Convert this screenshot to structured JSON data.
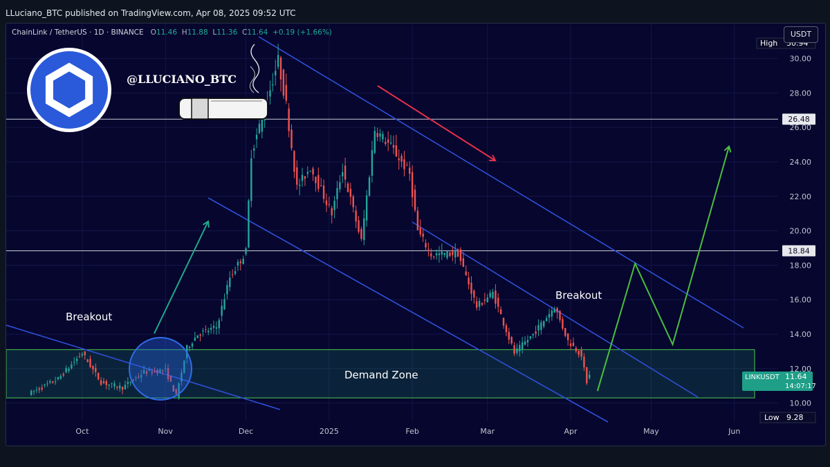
{
  "header": {
    "published_line": "LLuciano_BTC published on TradingView.com, Apr 08, 2025 09:52 UTC"
  },
  "legend": {
    "symbol": "ChainLink / TetherUS · 1D · BINANCE",
    "open_k": "O",
    "open": "11.46",
    "high_k": "H",
    "high": "11.88",
    "low_k": "L",
    "low": "11.36",
    "close_k": "C",
    "close": "11.64",
    "change": "+0.19 (+1.66%)"
  },
  "currency_button": "USDT",
  "author_tag": "@LLUCIANO_BTC",
  "price_scale": {
    "high_label": "High",
    "high_value": "30.94",
    "low_label": "Low",
    "low_value": "9.28",
    "ticker": "LINKUSDT",
    "last_price": "11.64",
    "countdown": "14:07:17",
    "level_upper": "26.48",
    "level_lower": "18.84"
  },
  "annotations": {
    "breakout_left": "Breakout",
    "breakout_right": "Breakout",
    "demand_zone": "Demand Zone"
  },
  "colors": {
    "background": "#06062e",
    "bull": "#26a69a",
    "bear": "#ef5350",
    "channel": "#2f4fd8",
    "demand_zone": "#3fae4a",
    "projection": "#4bbf3f",
    "red_arrow": "#e8304c",
    "teal_arrow": "#22a88c",
    "logo_blue": "#2a5ada"
  },
  "icons": {
    "logo": "chainlink-logo-icon",
    "cigar": "cigar-icon"
  },
  "chart_data": {
    "type": "candlestick",
    "symbol": "LINKUSDT",
    "interval": "1D",
    "x_tick_labels": [
      "Oct",
      "Nov",
      "Dec",
      "2025",
      "Feb",
      "Mar",
      "Apr",
      "May",
      "Jun"
    ],
    "y_tick_labels": [
      "10.00",
      "12.00",
      "14.00",
      "16.00",
      "18.00",
      "20.00",
      "22.00",
      "24.00",
      "26.00",
      "28.00",
      "30.00"
    ],
    "ylim": [
      9.2,
      31.0
    ],
    "horizontal_levels": [
      26.48,
      18.84
    ],
    "demand_zone": [
      10.3,
      13.1
    ],
    "grid": true,
    "price_path": [
      {
        "date": "2024-09-12",
        "close": 10.6
      },
      {
        "date": "2024-09-22",
        "close": 11.4
      },
      {
        "date": "2024-10-01",
        "close": 12.9
      },
      {
        "date": "2024-10-08",
        "close": 11.2
      },
      {
        "date": "2024-10-16",
        "close": 10.9
      },
      {
        "date": "2024-10-24",
        "close": 11.8
      },
      {
        "date": "2024-11-01",
        "close": 11.9
      },
      {
        "date": "2024-11-05",
        "close": 10.4
      },
      {
        "date": "2024-11-09",
        "close": 13.2
      },
      {
        "date": "2024-11-13",
        "close": 14.0
      },
      {
        "date": "2024-11-20",
        "close": 14.4
      },
      {
        "date": "2024-11-25",
        "close": 17.3
      },
      {
        "date": "2024-12-01",
        "close": 18.8
      },
      {
        "date": "2024-12-03",
        "close": 24.5
      },
      {
        "date": "2024-12-08",
        "close": 27.1
      },
      {
        "date": "2024-12-13",
        "close": 29.9
      },
      {
        "date": "2024-12-16",
        "close": 27.3
      },
      {
        "date": "2024-12-20",
        "close": 22.5
      },
      {
        "date": "2024-12-25",
        "close": 23.7
      },
      {
        "date": "2025-01-02",
        "close": 21.0
      },
      {
        "date": "2025-01-06",
        "close": 23.6
      },
      {
        "date": "2025-01-13",
        "close": 19.4
      },
      {
        "date": "2025-01-18",
        "close": 25.9
      },
      {
        "date": "2025-01-24",
        "close": 24.9
      },
      {
        "date": "2025-01-31",
        "close": 23.3
      },
      {
        "date": "2025-02-03",
        "close": 20.0
      },
      {
        "date": "2025-02-08",
        "close": 18.6
      },
      {
        "date": "2025-02-18",
        "close": 18.7
      },
      {
        "date": "2025-02-25",
        "close": 15.6
      },
      {
        "date": "2025-03-03",
        "close": 16.4
      },
      {
        "date": "2025-03-11",
        "close": 12.9
      },
      {
        "date": "2025-03-18",
        "close": 14.0
      },
      {
        "date": "2025-03-26",
        "close": 15.6
      },
      {
        "date": "2025-03-31",
        "close": 13.6
      },
      {
        "date": "2025-04-05",
        "close": 12.8
      },
      {
        "date": "2025-04-07",
        "close": 11.1
      },
      {
        "date": "2025-04-08",
        "close": 11.64
      }
    ],
    "projection": [
      {
        "date": "2025-04-11",
        "value": 10.7
      },
      {
        "date": "2025-04-25",
        "value": 18.1
      },
      {
        "date": "2025-05-09",
        "value": 13.4
      },
      {
        "date": "2025-05-30",
        "value": 24.9
      }
    ]
  }
}
